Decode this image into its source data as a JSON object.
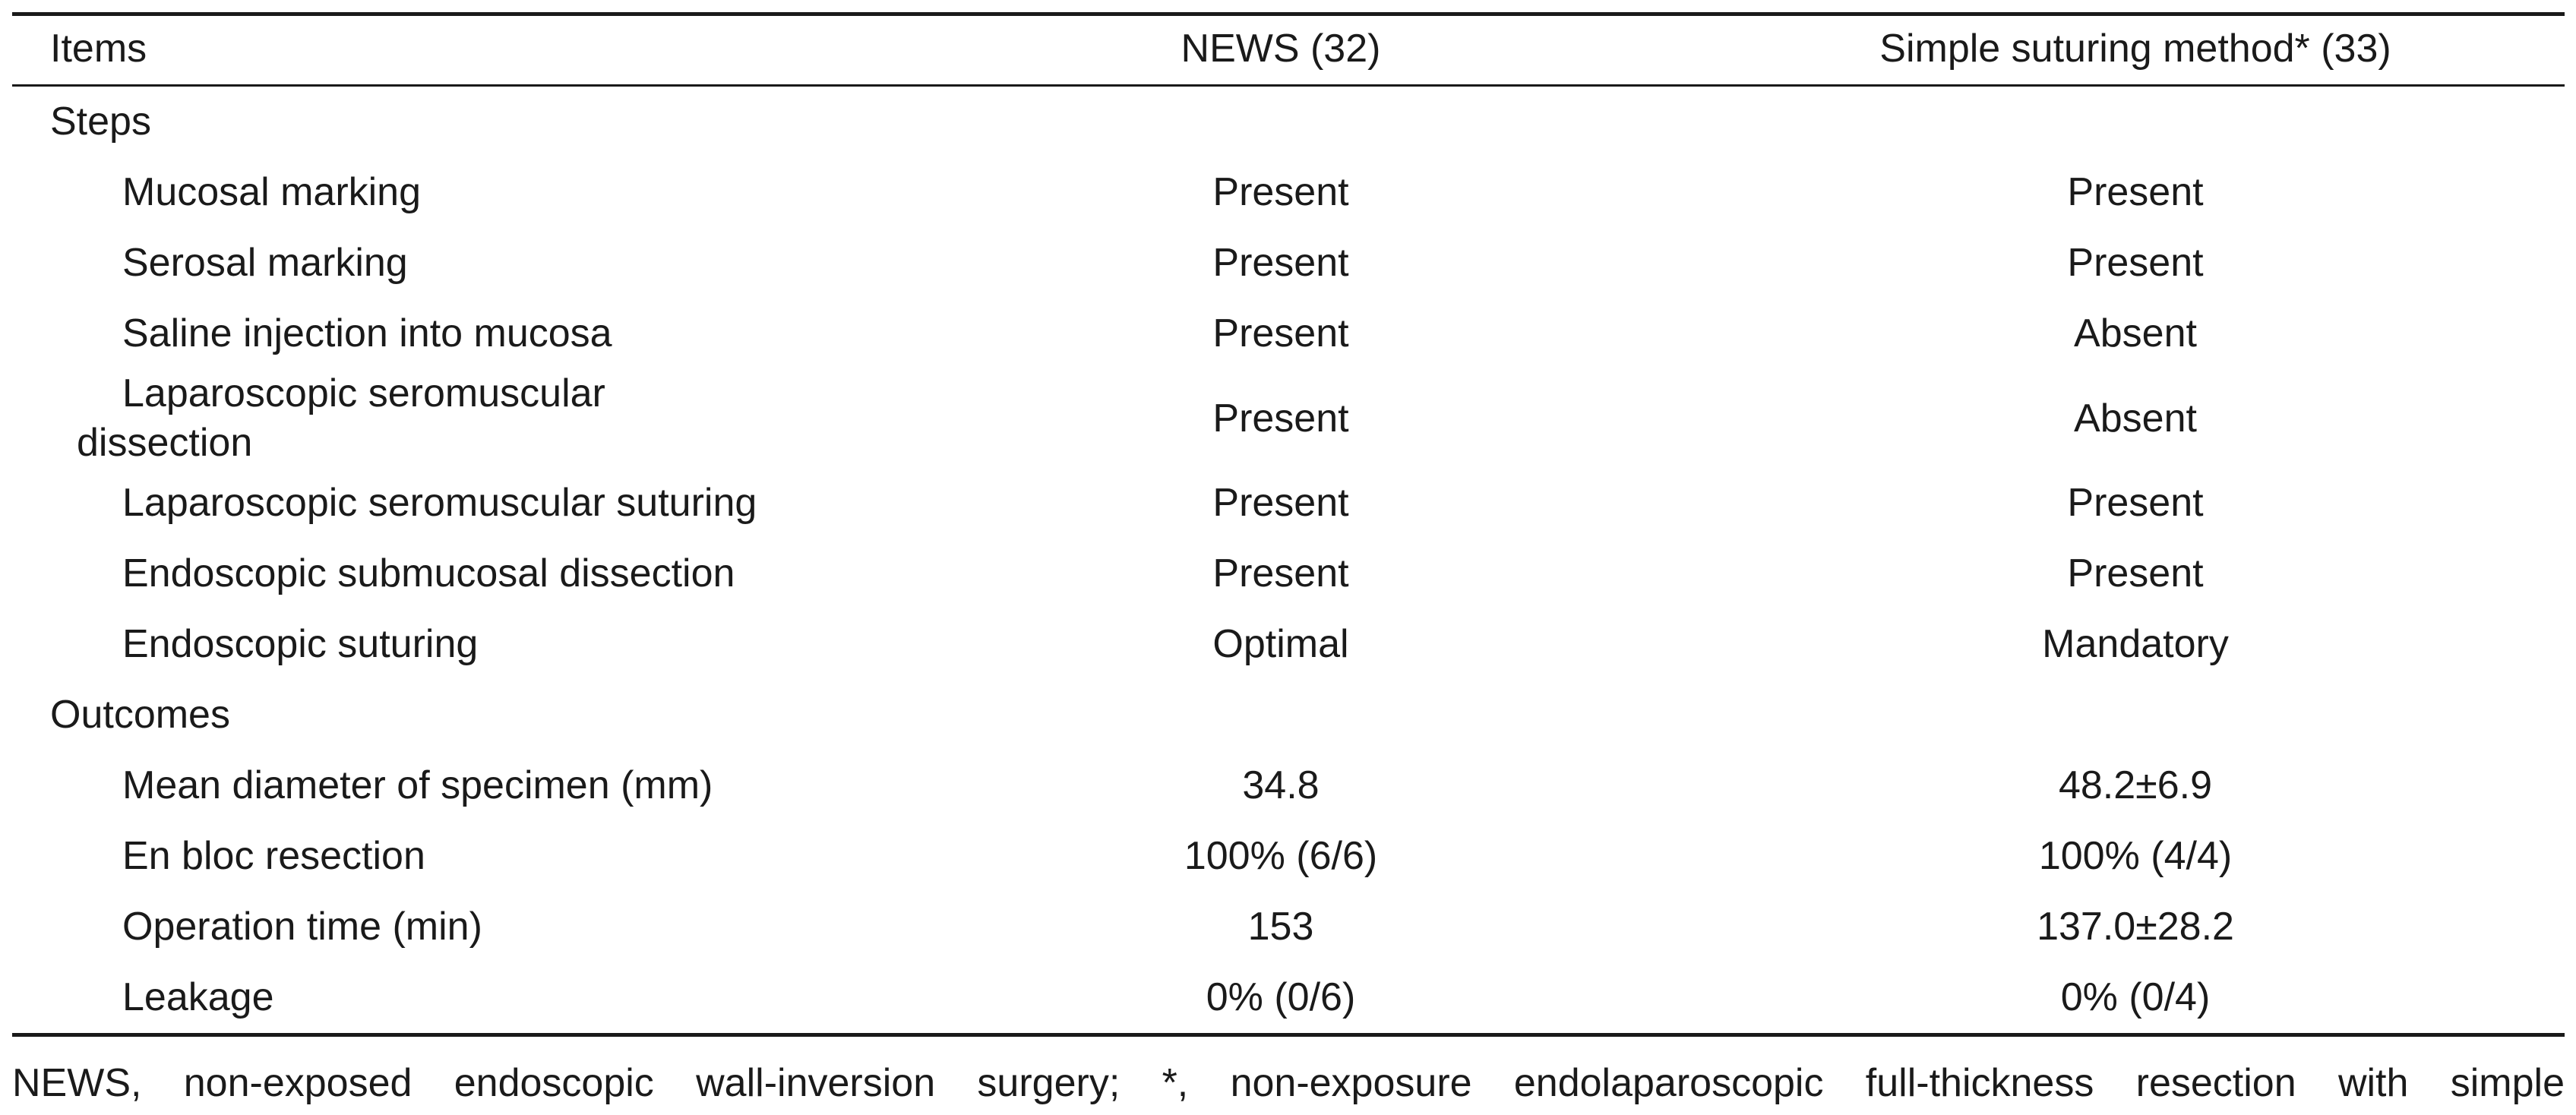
{
  "table": {
    "headers": [
      "Items",
      "NEWS (32)",
      "Simple suturing method* (33)"
    ],
    "sections": [
      {
        "title": "Steps",
        "rows": [
          {
            "label": "Mucosal marking",
            "news": "Present",
            "simple": "Present"
          },
          {
            "label": "Serosal marking",
            "news": "Present",
            "simple": "Present"
          },
          {
            "label": "Saline injection into mucosa",
            "news": "Present",
            "simple": "Absent"
          },
          {
            "label": "Laparoscopic seromuscular",
            "label_cont": "dissection",
            "news": "Present",
            "simple": "Absent"
          },
          {
            "label": "Laparoscopic seromuscular suturing",
            "news": "Present",
            "simple": "Present"
          },
          {
            "label": "Endoscopic submucosal dissection",
            "news": "Present",
            "simple": "Present"
          },
          {
            "label": "Endoscopic suturing",
            "news": "Optimal",
            "simple": "Mandatory"
          }
        ]
      },
      {
        "title": "Outcomes",
        "rows": [
          {
            "label": "Mean diameter of specimen (mm)",
            "news": "34.8",
            "simple": "48.2±6.9"
          },
          {
            "label": "En bloc resection",
            "news": "100% (6/6)",
            "simple": "100% (4/4)"
          },
          {
            "label": "Operation time (min)",
            "news": "153",
            "simple": "137.0±28.2"
          },
          {
            "label": "Leakage",
            "news": "0% (0/6)",
            "simple": "0% (0/4)"
          }
        ]
      }
    ]
  },
  "footnote": "NEWS, non-exposed endoscopic wall-inversion surgery; *, non-exposure endolaparoscopic full-thickness resection with simple"
}
